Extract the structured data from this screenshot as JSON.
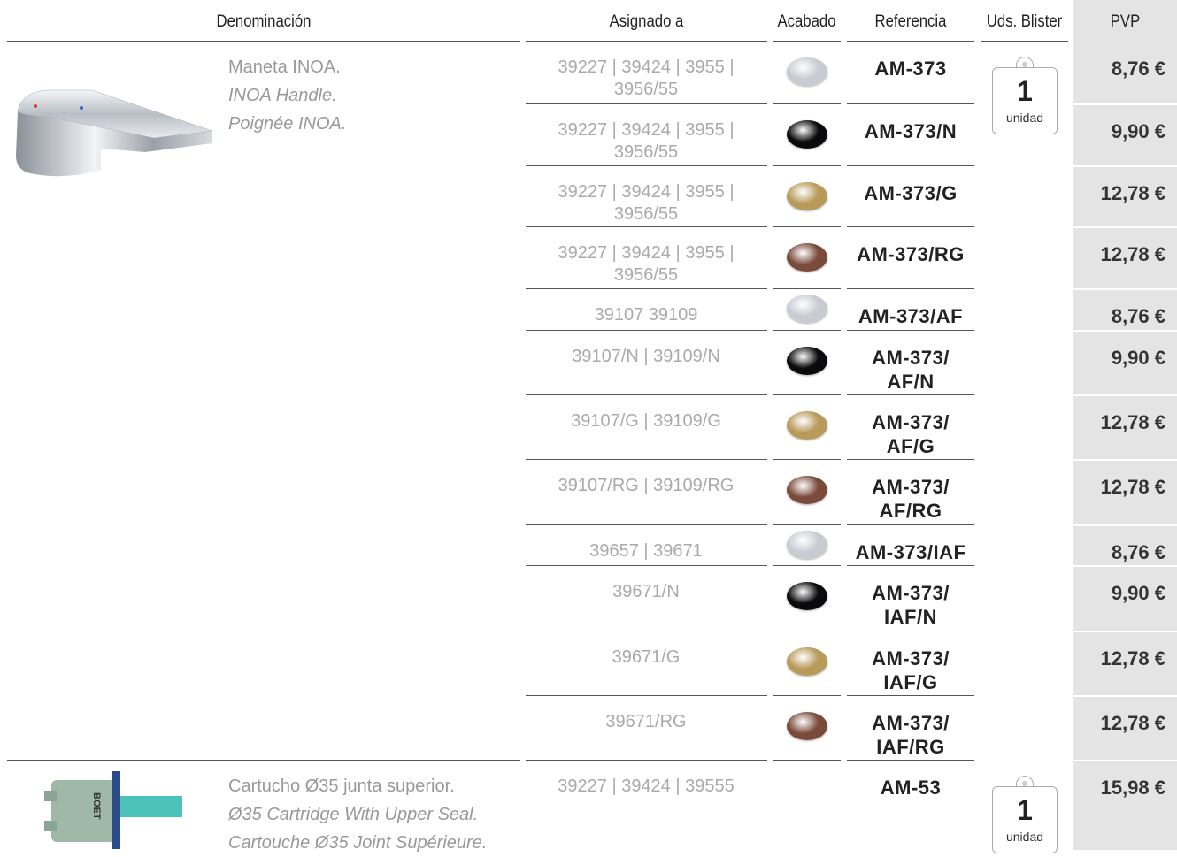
{
  "header": [
    "Denominación",
    "Asignado a",
    "Acabado",
    "Referencia",
    "Uds. Blister",
    "PVP"
  ],
  "products": [
    {
      "name": [
        "Maneta INOA.",
        "INOA Handle.",
        "Poignée INOA."
      ],
      "blister": {
        "count": "1",
        "unit": "unidad"
      },
      "rows": [
        {
          "assigned": "39227 | 39424 | 3955 | 3956/55",
          "finish_color": "#c8ccd2",
          "ref": "AM-373",
          "price": "8,76 €"
        },
        {
          "assigned": "39227 | 39424 | 3955 | 3956/55",
          "finish_color": "#0a0a0c",
          "ref": "AM-373/N",
          "price": "9,90 €"
        },
        {
          "assigned": "39227 | 39424 | 3955 | 3956/55",
          "finish_color": "#b89a5a",
          "ref": "AM-373/G",
          "price": "12,78 €"
        },
        {
          "assigned": "39227 | 39424 | 3955 | 3956/55",
          "finish_color": "#7a4a3a",
          "ref": "AM-373/RG",
          "price": "12,78 €"
        },
        {
          "assigned": "39107 39109",
          "finish_color": "#c8ccd2",
          "ref": "AM-373/AF",
          "price": "8,76 €"
        },
        {
          "assigned": "39107/N | 39109/N",
          "finish_color": "#0a0a0c",
          "ref": "AM-373/\nAF/N",
          "price": "9,90 €"
        },
        {
          "assigned": "39107/G | 39109/G",
          "finish_color": "#b89a5a",
          "ref": "AM-373/\nAF/G",
          "price": "12,78 €"
        },
        {
          "assigned": "39107/RG | 39109/RG",
          "finish_color": "#7a4a3a",
          "ref": "AM-373/\nAF/RG",
          "price": "12,78 €"
        },
        {
          "assigned": "39657 | 39671",
          "finish_color": "#c8ccd2",
          "ref": "AM-373/IAF",
          "price": "8,76 €"
        },
        {
          "assigned": "39671/N",
          "finish_color": "#0a0a0c",
          "ref": "AM-373/\nIAF/N",
          "price": "9,90 €"
        },
        {
          "assigned": "39671/G",
          "finish_color": "#b89a5a",
          "ref": "AM-373/\nIAF/G",
          "price": "12,78 €"
        },
        {
          "assigned": "39671/RG",
          "finish_color": "#7a4a3a",
          "ref": "AM-373/\nIAF/RG",
          "price": "12,78 €"
        }
      ]
    },
    {
      "name": [
        "Cartucho Ø35 junta superior.",
        "Ø35 Cartridge With Upper Seal.",
        "Cartouche Ø35 Joint Supérieure."
      ],
      "blister": {
        "count": "1",
        "unit": "unidad"
      },
      "rows": [
        {
          "assigned": "39227 | 39424 | 39555",
          "ref": "AM-53",
          "price": "15,98 €"
        }
      ]
    }
  ]
}
